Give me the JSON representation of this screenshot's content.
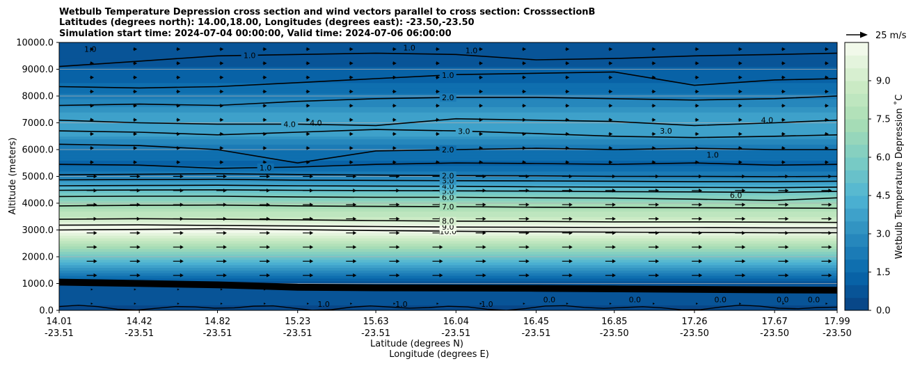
{
  "chart_data": {
    "type": "contour",
    "title": [
      "Wetbulb Temperature Depression cross section and wind vectors parallel to cross section: CrosssectionB",
      "Latitudes (degrees north): 14.00,18.00, Longitudes (degrees east): -23.50,-23.50",
      "Simulation start time: 2024-07-04 00:00:00, Valid time: 2024-07-06 06:00:00"
    ],
    "xlabel_lat": "Latitude (degrees N)",
    "xlabel_lon": "Longitude (degrees E)",
    "ylabel": "Altitude (meters)",
    "x_ticks": [
      {
        "lat": "14.01",
        "lon": "-23.51"
      },
      {
        "lat": "14.42",
        "lon": "-23.51"
      },
      {
        "lat": "14.82",
        "lon": "-23.51"
      },
      {
        "lat": "15.23",
        "lon": "-23.51"
      },
      {
        "lat": "15.63",
        "lon": "-23.51"
      },
      {
        "lat": "16.04",
        "lon": "-23.51"
      },
      {
        "lat": "16.45",
        "lon": "-23.51"
      },
      {
        "lat": "16.85",
        "lon": "-23.50"
      },
      {
        "lat": "17.26",
        "lon": "-23.50"
      },
      {
        "lat": "17.67",
        "lon": "-23.50"
      },
      {
        "lat": "17.99",
        "lon": "-23.50"
      }
    ],
    "x_values": [
      14.01,
      14.42,
      14.82,
      15.23,
      15.63,
      16.04,
      16.45,
      16.85,
      17.26,
      17.67,
      17.99
    ],
    "y_ticks": [
      "0.0",
      "1000.0",
      "2000.0",
      "3000.0",
      "4000.0",
      "5000.0",
      "6000.0",
      "7000.0",
      "8000.0",
      "9000.0",
      "10000.0"
    ],
    "ylim": [
      0,
      10000
    ],
    "grid": "horizontal",
    "colorbar": {
      "label": "Wetbulb Temperature Depression ˚C",
      "ticks": [
        "0.0",
        "1.5",
        "3.0",
        "4.5",
        "6.0",
        "7.5",
        "9.0"
      ],
      "range": [
        0,
        10.5
      ]
    },
    "quiver_key": "25 m/s",
    "profile_levels": [
      {
        "z": 0,
        "v": 0.4
      },
      {
        "z": 1000,
        "v": 0.8
      },
      {
        "z": 1100,
        "v": 1.0
      },
      {
        "z": 3000,
        "v": 10.5
      },
      {
        "z": 3150,
        "v": 10.2
      },
      {
        "z": 3350,
        "v": 9.2
      },
      {
        "z": 3600,
        "v": 8.2
      },
      {
        "z": 3900,
        "v": 7.2
      },
      {
        "z": 4200,
        "v": 6.3
      },
      {
        "z": 4400,
        "v": 5.4
      },
      {
        "z": 4600,
        "v": 4.5
      },
      {
        "z": 4800,
        "v": 3.5
      },
      {
        "z": 5000,
        "v": 2.6
      },
      {
        "z": 5400,
        "v": 1.4
      },
      {
        "z": 5800,
        "v": 1.6
      },
      {
        "z": 6200,
        "v": 2.4
      },
      {
        "z": 6700,
        "v": 4.0
      },
      {
        "z": 7200,
        "v": 3.8
      },
      {
        "z": 7700,
        "v": 2.8
      },
      {
        "z": 8200,
        "v": 1.8
      },
      {
        "z": 8800,
        "v": 1.1
      },
      {
        "z": 9400,
        "v": 0.9
      },
      {
        "z": 10000,
        "v": 0.7
      }
    ],
    "contours": [
      {
        "label": "10.0",
        "z": [
          3000,
          3020,
          3050,
          3010,
          2980,
          2950,
          2930,
          2920,
          2910,
          2900,
          2900
        ],
        "show": 0.49
      },
      {
        "label": "9.0",
        "z": [
          3180,
          3190,
          3170,
          3150,
          3130,
          3110,
          3100,
          3090,
          3090,
          3080,
          3080
        ],
        "show": 0.49
      },
      {
        "label": "8.0",
        "z": [
          3400,
          3420,
          3400,
          3380,
          3350,
          3330,
          3320,
          3300,
          3300,
          3290,
          3280
        ],
        "show": 0.49
      },
      {
        "label": "7.0",
        "z": [
          3900,
          3920,
          3930,
          3900,
          3880,
          3870,
          3850,
          3840,
          3830,
          3820,
          3810
        ],
        "show": 0.49
      },
      {
        "label": "6.0",
        "z": [
          4250,
          4260,
          4260,
          4230,
          4220,
          4220,
          4200,
          4190,
          4150,
          4100,
          4200
        ],
        "show": 0.49
      },
      {
        "label": "5.0",
        "z": [
          4480,
          4490,
          4500,
          4480,
          4470,
          4460,
          4450,
          4430,
          4420,
          4400,
          4440
        ],
        "show": 0.49
      },
      {
        "label": "4.0",
        "z": [
          4650,
          4660,
          4670,
          4650,
          4640,
          4630,
          4610,
          4600,
          4590,
          4580,
          4600
        ],
        "show": 0.49
      },
      {
        "label": "3.0",
        "z": [
          4870,
          4880,
          4890,
          4860,
          4850,
          4840,
          4830,
          4820,
          4800,
          4800,
          4820
        ],
        "show": 0.49
      },
      {
        "label": "2.0",
        "z": [
          5060,
          5080,
          5100,
          5070,
          5050,
          5030,
          5020,
          5000,
          5000,
          4990,
          5000
        ],
        "show": 0.49
      },
      {
        "label": "1.0",
        "z": [
          5450,
          5420,
          5300,
          5350,
          5450,
          5500,
          5480,
          5450,
          5500,
          5420,
          5450
        ],
        "show": 0.26
      },
      {
        "label": "2.0",
        "z": [
          6200,
          6150,
          6000,
          5500,
          5950,
          6000,
          6050,
          6000,
          6050,
          6000,
          6000
        ],
        "show": 0.49
      },
      {
        "label": "3.0",
        "z": [
          6700,
          6650,
          6550,
          6650,
          6750,
          6700,
          6600,
          6500,
          6450,
          6500,
          6550
        ],
        "show": 0.51
      },
      {
        "label": "4.0",
        "z": [
          7100,
          7000,
          6950,
          6950,
          6900,
          7150,
          7100,
          7050,
          6900,
          7000,
          7100
        ],
        "show": 0.29
      },
      {
        "label": "2.0",
        "z": [
          7650,
          7700,
          7650,
          7800,
          7900,
          7950,
          7950,
          7900,
          7850,
          7900,
          8000
        ],
        "show": 0.49
      },
      {
        "label": "1.0",
        "z": [
          8350,
          8300,
          8350,
          8500,
          8650,
          8800,
          8850,
          8900,
          8400,
          8600,
          8650
        ],
        "show": 0.49
      },
      {
        "label": "1.0",
        "z": [
          9100,
          9300,
          9500,
          9550,
          9600,
          9550,
          9350,
          9400,
          9500,
          9550,
          9600
        ],
        "show": 0.24
      }
    ],
    "contour_labels_surface": [
      "1.0",
      "1.0",
      "1.0",
      "0.0",
      "0.0",
      "0.0",
      "0.0",
      "0.0"
    ],
    "contour_labels_misc": [
      "1.0",
      "1.0",
      "1.0",
      "6.0",
      "4.0",
      "1.0",
      "3.0",
      "4.0"
    ]
  }
}
